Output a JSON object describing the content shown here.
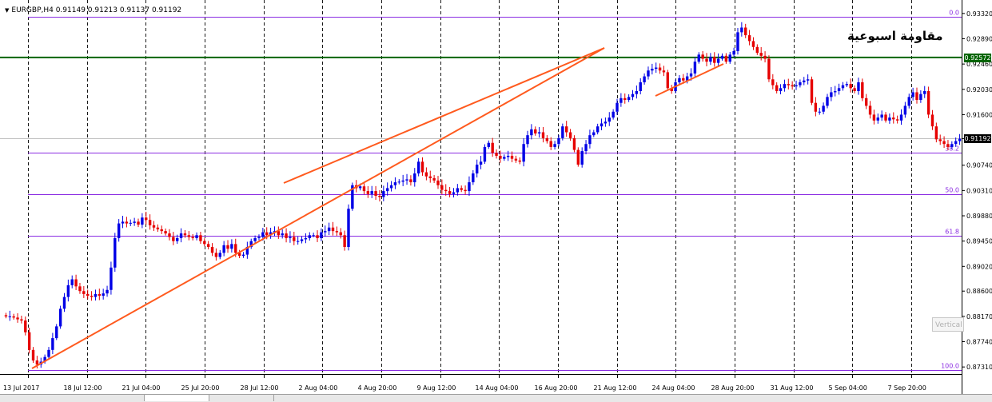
{
  "symbol_info": "EURGBP,H4  0.91149 0.91213 0.91137 0.91192",
  "annotation_text": "مقاومة اسبوعية",
  "resistance_price": "0.92572",
  "current_price": "0.91192",
  "vertical_tooltip": "Vertical",
  "colors": {
    "bull_candle": "#0000e6",
    "bear_candle": "#e60000",
    "channel": "#ff5a1e",
    "resistance": "#006400",
    "fib": "#8a2be2",
    "grid": "#000000"
  },
  "chart_data": {
    "type": "candlestick",
    "timeframe": "H4",
    "ylim": [
      0.8719,
      0.9344
    ],
    "y_ticks": [
      "0.93320",
      "0.92890",
      "0.92460",
      "0.92030",
      "0.91600",
      "0.91192",
      "0.90740",
      "0.90310",
      "0.89880",
      "0.89450",
      "0.89020",
      "0.88600",
      "0.88170",
      "0.87740",
      "0.87310"
    ],
    "x_labels": [
      "13 Jul 2017",
      "18 Jul 12:00",
      "21 Jul 04:00",
      "25 Jul 20:00",
      "28 Jul 12:00",
      "2 Aug 04:00",
      "4 Aug 20:00",
      "9 Aug 12:00",
      "14 Aug 04:00",
      "16 Aug 20:00",
      "21 Aug 12:00",
      "24 Aug 04:00",
      "28 Aug 20:00",
      "31 Aug 12:00",
      "5 Sep 04:00",
      "7 Sep 20:00"
    ],
    "fib_levels": [
      {
        "label": "0.0",
        "price": 0.9327
      },
      {
        "label": "38.2",
        "price": 0.9096
      },
      {
        "label": "50.0",
        "price": 0.9025
      },
      {
        "label": "61.8",
        "price": 0.8954
      },
      {
        "label": "100.0",
        "price": 0.8726
      }
    ],
    "resistance_level": 0.92572,
    "channel": {
      "lower": [
        {
          "date": "13 Jul 2017 20:00",
          "price": 0.8731
        },
        {
          "date": "29 Aug 08:00",
          "price": 0.9197
        }
      ],
      "upper": [
        {
          "date": "31 Jul 20:00",
          "price": 0.9049
        },
        {
          "date": "24 Aug 20:00",
          "price": 0.926
        }
      ],
      "extended_lower": [
        {
          "date": "29 Aug 08:00",
          "price": 0.9197
        },
        {
          "date": "1 Sep 20:00",
          "price": 0.9241
        }
      ]
    },
    "close_series": [
      0.8817,
      0.8817,
      0.8815,
      0.8812,
      0.881,
      0.879,
      0.876,
      0.8742,
      0.8735,
      0.874,
      0.8748,
      0.876,
      0.878,
      0.88,
      0.883,
      0.885,
      0.887,
      0.888,
      0.8868,
      0.886,
      0.8855,
      0.8852,
      0.885,
      0.8855,
      0.8852,
      0.8856,
      0.8862,
      0.89,
      0.895,
      0.8975,
      0.8978,
      0.8975,
      0.8976,
      0.8978,
      0.8973,
      0.8985,
      0.8981,
      0.8972,
      0.8968,
      0.8965,
      0.8962,
      0.8958,
      0.8952,
      0.8945,
      0.895,
      0.8958,
      0.8955,
      0.8952,
      0.895,
      0.8955,
      0.8945,
      0.894,
      0.8935,
      0.8925,
      0.8918,
      0.8925,
      0.8938,
      0.8932,
      0.894,
      0.8925,
      0.892,
      0.8922,
      0.8935,
      0.8945,
      0.895,
      0.8952,
      0.896,
      0.8955,
      0.896,
      0.8962,
      0.8955,
      0.8958,
      0.895,
      0.8952,
      0.8945,
      0.8945,
      0.8948,
      0.895,
      0.8955,
      0.8955,
      0.895,
      0.896,
      0.8962,
      0.8968,
      0.8962,
      0.896,
      0.8955,
      0.8935,
      0.9,
      0.904,
      0.9035,
      0.9038,
      0.903,
      0.9025,
      0.903,
      0.9022,
      0.902,
      0.903,
      0.9035,
      0.904,
      0.9045,
      0.9046,
      0.9048,
      0.905,
      0.9045,
      0.906,
      0.908,
      0.9062,
      0.9055,
      0.9052,
      0.9048,
      0.904,
      0.9032,
      0.903,
      0.9025,
      0.9028,
      0.9035,
      0.9032,
      0.903,
      0.9045,
      0.906,
      0.9075,
      0.908,
      0.9105,
      0.9112,
      0.9095,
      0.909,
      0.9085,
      0.9088,
      0.909,
      0.9085,
      0.9082,
      0.908,
      0.911,
      0.9125,
      0.9135,
      0.9128,
      0.913,
      0.912,
      0.9115,
      0.9105,
      0.911,
      0.912,
      0.914,
      0.913,
      0.912,
      0.91,
      0.9075,
      0.9098,
      0.911,
      0.9125,
      0.913,
      0.914,
      0.9145,
      0.9148,
      0.9155,
      0.9165,
      0.918,
      0.9188,
      0.9185,
      0.919,
      0.9195,
      0.92,
      0.9215,
      0.9225,
      0.9235,
      0.9238,
      0.924,
      0.9235,
      0.9232,
      0.9205,
      0.92,
      0.9215,
      0.9222,
      0.9218,
      0.9225,
      0.923,
      0.925,
      0.9262,
      0.9255,
      0.925,
      0.9258,
      0.9248,
      0.9255,
      0.926,
      0.925,
      0.9262,
      0.9268,
      0.93,
      0.9308,
      0.9295,
      0.9285,
      0.9275,
      0.9265,
      0.926,
      0.9255,
      0.922,
      0.921,
      0.92,
      0.9205,
      0.9212,
      0.921,
      0.9208,
      0.921,
      0.9215,
      0.9218,
      0.922,
      0.918,
      0.9165,
      0.9165,
      0.9175,
      0.919,
      0.9198,
      0.92,
      0.9205,
      0.921,
      0.9212,
      0.9205,
      0.92,
      0.9215,
      0.9188,
      0.9175,
      0.916,
      0.915,
      0.9155,
      0.916,
      0.915,
      0.9155,
      0.9152,
      0.915,
      0.916,
      0.9175,
      0.919,
      0.9198,
      0.9185,
      0.9195,
      0.92,
      0.916,
      0.914,
      0.9118,
      0.9115,
      0.911,
      0.9105,
      0.911,
      0.9115,
      0.9119
    ]
  }
}
